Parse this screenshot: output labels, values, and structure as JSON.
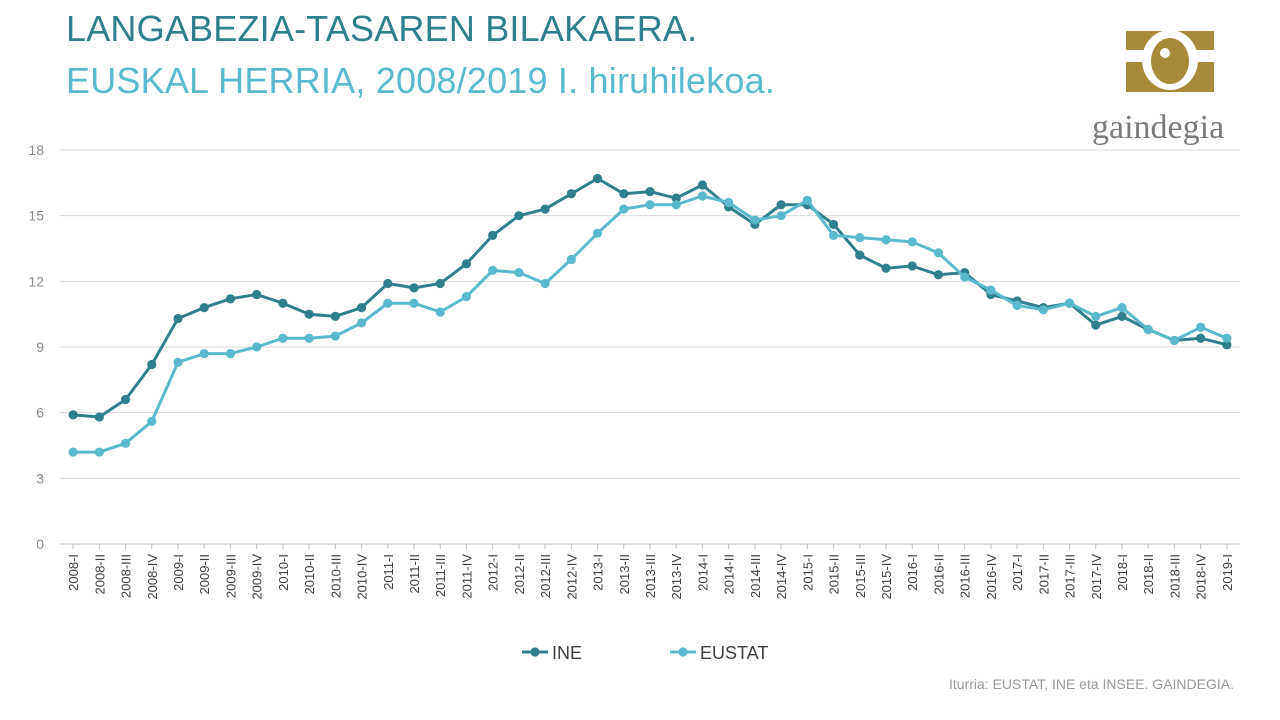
{
  "header": {
    "title": "LANGABEZIA-TASAREN BILAKAERA.",
    "subtitle": "EUSKAL HERRIA, 2008/2019 I. hiruhilekoa."
  },
  "logo": {
    "text": "gaindegia"
  },
  "source": "Iturria: EUSTAT, INE eta INSEE. GAINDEGIA.",
  "colors": {
    "ine": "#2f7f8c",
    "eustat": "#5ab9cc",
    "gold": "#a88b3a",
    "grid": "#d9d9d9"
  },
  "chart_data": {
    "type": "line",
    "title": "LANGABEZIA-TASAREN BILAKAERA.",
    "subtitle": "EUSKAL HERRIA, 2008/2019 I. hiruhilekoa.",
    "ylim": [
      0,
      18
    ],
    "yticks": [
      0,
      3,
      6,
      9,
      12,
      15,
      18
    ],
    "grid": true,
    "legend": "bottom",
    "categories": [
      "2008-I",
      "2008-II",
      "2008-III",
      "2008-IV",
      "2009-I",
      "2009-II",
      "2009-III",
      "2009-IV",
      "2010-I",
      "2010-II",
      "2010-III",
      "2010-IV",
      "2011-I",
      "2011-II",
      "2011-III",
      "2011-IV",
      "2012-I",
      "2012-II",
      "2012-III",
      "2012-IV",
      "2013-I",
      "2013-II",
      "2013-III",
      "2013-IV",
      "2014-I",
      "2014-II",
      "2014-III",
      "2014-IV",
      "2015-I",
      "2015-II",
      "2015-III",
      "2015-IV",
      "2016-I",
      "2016-II",
      "2016-III",
      "2016-IV",
      "2017-I",
      "2017-II",
      "2017-III",
      "2017-IV",
      "2018-I",
      "2018-II",
      "2018-III",
      "2018-IV",
      "2019-I"
    ],
    "series": [
      {
        "name": "INE",
        "color": "#2f7f8c",
        "values": [
          5.9,
          5.8,
          6.6,
          8.2,
          10.3,
          10.8,
          11.2,
          11.4,
          11.0,
          10.5,
          10.4,
          10.8,
          11.9,
          11.7,
          11.9,
          12.8,
          14.1,
          15.0,
          15.3,
          16.0,
          16.7,
          16.0,
          16.1,
          15.8,
          16.4,
          15.4,
          14.6,
          15.5,
          15.5,
          14.6,
          13.2,
          12.6,
          12.7,
          12.3,
          12.4,
          11.4,
          11.1,
          10.8,
          11.0,
          10.0,
          10.4,
          9.8,
          9.3,
          9.4,
          9.1
        ]
      },
      {
        "name": "EUSTAT",
        "color": "#5ab9cc",
        "values": [
          4.2,
          4.2,
          4.6,
          5.6,
          8.3,
          8.7,
          8.7,
          9.0,
          9.4,
          9.4,
          9.5,
          10.1,
          11.0,
          11.0,
          10.6,
          11.3,
          12.5,
          12.4,
          11.9,
          13.0,
          14.2,
          15.3,
          15.5,
          15.5,
          15.9,
          15.6,
          14.8,
          15.0,
          15.7,
          14.1,
          14.0,
          13.9,
          13.8,
          13.3,
          12.2,
          11.6,
          10.9,
          10.7,
          11.0,
          10.4,
          10.8,
          9.8,
          9.3,
          9.9,
          9.4
        ]
      }
    ]
  }
}
